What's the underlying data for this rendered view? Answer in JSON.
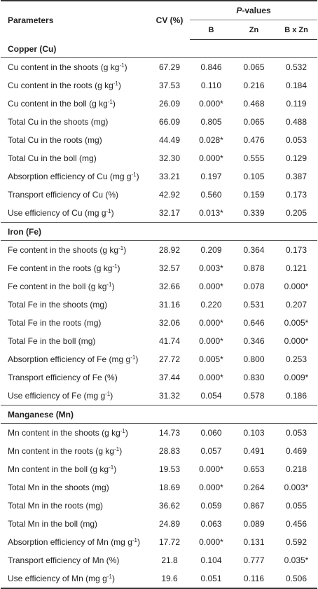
{
  "header": {
    "parameters": "Parameters",
    "cv": "CV (%)",
    "pvalues_italic": "P",
    "pvalues_rest": "-values",
    "col_b": "B",
    "col_zn": "Zn",
    "col_bxzn": "B x Zn"
  },
  "sections": [
    {
      "title": "Copper (Cu)",
      "rows": [
        {
          "name": "Cu content in the shoots (g kg",
          "sup": "-1",
          "tail": ")",
          "cv": "67.29",
          "b": "0.846",
          "zn": "0.065",
          "bxzn": "0.532"
        },
        {
          "name": "Cu content in the roots (g kg",
          "sup": "-1",
          "tail": ")",
          "cv": "37.53",
          "b": "0.110",
          "zn": "0.216",
          "bxzn": "0.184"
        },
        {
          "name": "Cu content in the boll (g kg",
          "sup": "-1",
          "tail": ")",
          "cv": "26.09",
          "b": "0.000*",
          "zn": "0.468",
          "bxzn": "0.119"
        },
        {
          "name": "Total Cu in the shoots (mg)",
          "sup": "",
          "tail": "",
          "cv": "66.09",
          "b": "0.805",
          "zn": "0.065",
          "bxzn": "0.488"
        },
        {
          "name": "Total Cu in the roots (mg)",
          "sup": "",
          "tail": "",
          "cv": "44.49",
          "b": "0.028*",
          "zn": "0.476",
          "bxzn": "0.053"
        },
        {
          "name": "Total Cu in the boll (mg)",
          "sup": "",
          "tail": "",
          "cv": "32.30",
          "b": "0.000*",
          "zn": "0.555",
          "bxzn": "0.129"
        },
        {
          "name": "Absorption efficiency of Cu (mg g",
          "sup": "-1",
          "tail": ")",
          "cv": "33.21",
          "b": "0.197",
          "zn": "0.105",
          "bxzn": "0.387"
        },
        {
          "name": "Transport efficiency of Cu (%)",
          "sup": "",
          "tail": "",
          "cv": "42.92",
          "b": "0.560",
          "zn": "0.159",
          "bxzn": "0.173"
        },
        {
          "name": "Use efficiency of Cu (mg g",
          "sup": "-1",
          "tail": ")",
          "cv": "32.17",
          "b": "0.013*",
          "zn": "0.339",
          "bxzn": "0.205"
        }
      ]
    },
    {
      "title": "Iron (Fe)",
      "rows": [
        {
          "name": "Fe content in the shoots (g kg",
          "sup": "-1",
          "tail": ")",
          "cv": "28.92",
          "b": "0.209",
          "zn": "0.364",
          "bxzn": "0.173"
        },
        {
          "name": "Fe content in the roots (g kg",
          "sup": "-1",
          "tail": ")",
          "cv": "32.57",
          "b": "0.003*",
          "zn": "0.878",
          "bxzn": "0.121"
        },
        {
          "name": "Fe content in the boll (g kg",
          "sup": "-1",
          "tail": ")",
          "cv": "32.66",
          "b": "0.000*",
          "zn": "0.078",
          "bxzn": "0.000*"
        },
        {
          "name": "Total Fe in the shoots (mg)",
          "sup": "",
          "tail": "",
          "cv": "31.16",
          "b": "0.220",
          "zn": "0.531",
          "bxzn": "0.207"
        },
        {
          "name": "Total Fe in the roots (mg)",
          "sup": "",
          "tail": "",
          "cv": "32.06",
          "b": "0.000*",
          "zn": "0.646",
          "bxzn": "0.005*"
        },
        {
          "name": "Total Fe in the boll (mg)",
          "sup": "",
          "tail": "",
          "cv": "41.74",
          "b": "0.000*",
          "zn": "0.346",
          "bxzn": "0.000*"
        },
        {
          "name": "Absorption efficiency of Fe (mg g",
          "sup": "-1",
          "tail": ")",
          "cv": "27.72",
          "b": "0.005*",
          "zn": "0.800",
          "bxzn": "0.253"
        },
        {
          "name": "Transport efficiency of Fe (%)",
          "sup": "",
          "tail": "",
          "cv": "37.44",
          "b": "0.000*",
          "zn": "0.830",
          "bxzn": "0.009*"
        },
        {
          "name": "Use efficiency of Fe (mg g",
          "sup": "-1",
          "tail": ")",
          "cv": "31.32",
          "b": "0.054",
          "zn": "0.578",
          "bxzn": "0.186"
        }
      ]
    },
    {
      "title": "Manganese (Mn)",
      "rows": [
        {
          "name": "Mn content in the shoots (g kg",
          "sup": "-1",
          "tail": ")",
          "cv": "14.73",
          "b": "0.060",
          "zn": "0.103",
          "bxzn": "0.053"
        },
        {
          "name": "Mn content in the roots (g kg",
          "sup": "-1",
          "tail": ")",
          "cv": "28.83",
          "b": "0.057",
          "zn": "0.491",
          "bxzn": "0.469"
        },
        {
          "name": "Mn content in the boll (g kg",
          "sup": "-1",
          "tail": ")",
          "cv": "19.53",
          "b": "0.000*",
          "zn": "0.653",
          "bxzn": "0.218"
        },
        {
          "name": "Total Mn in the shoots (mg)",
          "sup": "",
          "tail": "",
          "cv": "18.69",
          "b": "0.000*",
          "zn": "0.264",
          "bxzn": "0.003*"
        },
        {
          "name": "Total Mn in the roots (mg)",
          "sup": "",
          "tail": "",
          "cv": "36.62",
          "b": "0.059",
          "zn": "0.867",
          "bxzn": "0.055"
        },
        {
          "name": "Total Mn in the boll (mg)",
          "sup": "",
          "tail": "",
          "cv": "24.89",
          "b": "0.063",
          "zn": "0.089",
          "bxzn": "0.456"
        },
        {
          "name": "Absorption efficiency of Mn (mg g",
          "sup": "-1",
          "tail": ")",
          "cv": "17.72",
          "b": "0.000*",
          "zn": "0.131",
          "bxzn": "0.592"
        },
        {
          "name": "Transport efficiency of Mn (%)",
          "sup": "",
          "tail": "",
          "cv": "21.8",
          "b": "0.104",
          "zn": "0.777",
          "bxzn": "0.035*"
        },
        {
          "name": "Use efficiency of Mn (mg g",
          "sup": "-1",
          "tail": ")",
          "cv": "19.6",
          "b": "0.051",
          "zn": "0.116",
          "bxzn": "0.506"
        }
      ]
    }
  ]
}
